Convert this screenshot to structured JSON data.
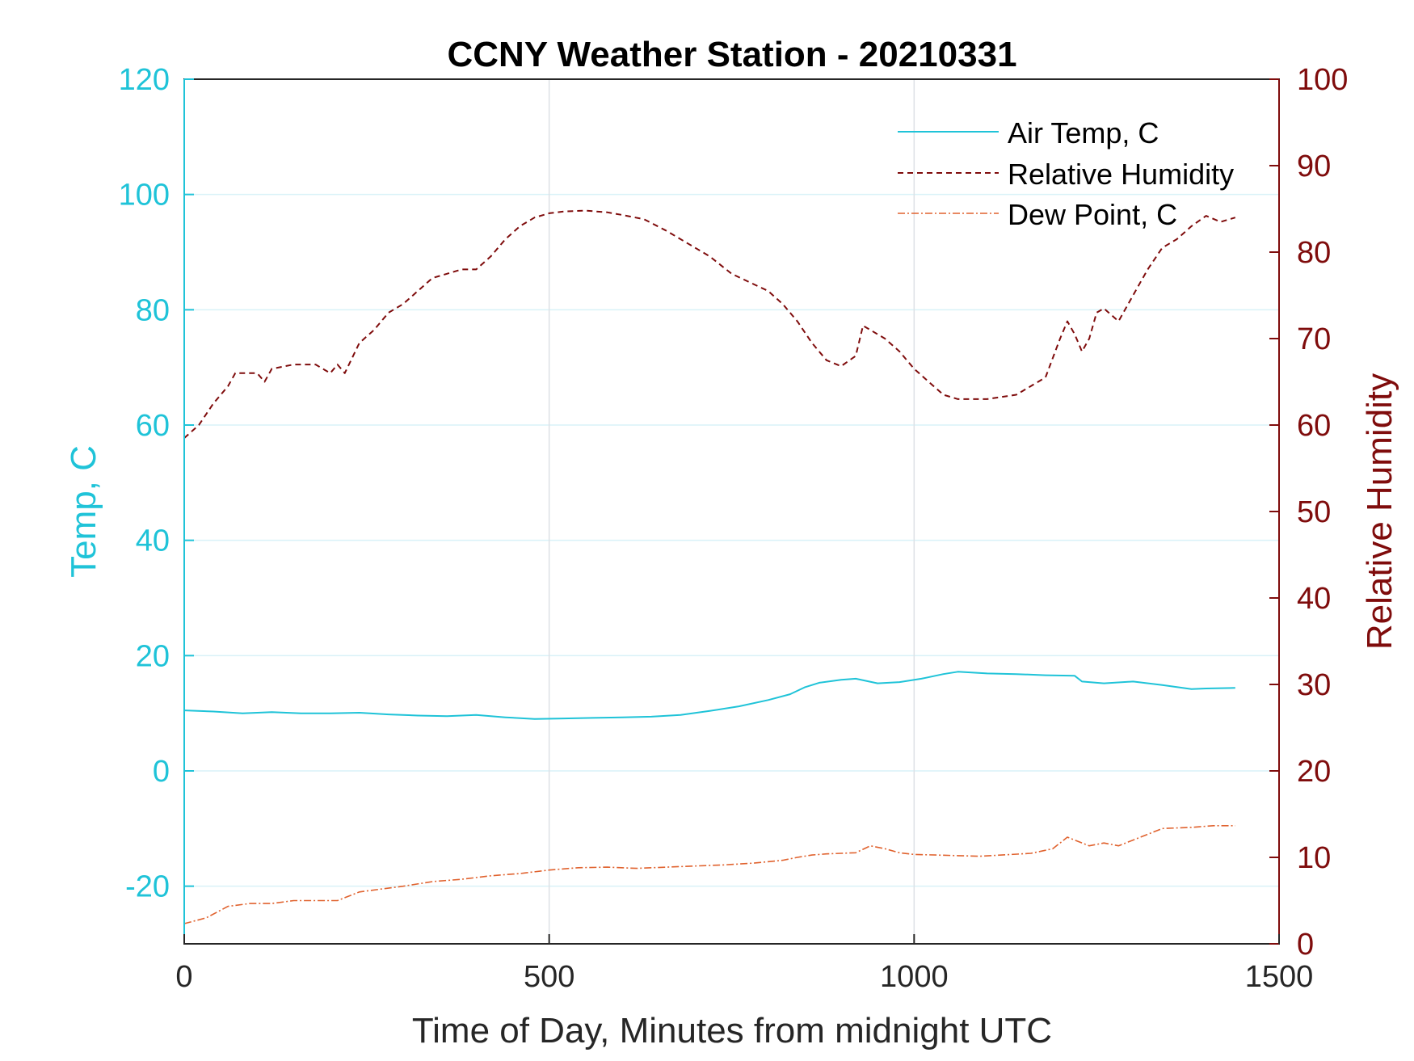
{
  "chart_data": {
    "type": "line",
    "title": "CCNY Weather Station - 20210331",
    "xlabel": "Time of Day, Minutes from midnight UTC",
    "ylabel_left": "Temp, C",
    "ylabel_right": "Relative Humidity",
    "xlim": [
      0,
      1500
    ],
    "ylim_left": [
      -30,
      120
    ],
    "ylim_right": [
      0,
      100
    ],
    "x_ticks": [
      "0",
      "500",
      "1000",
      "1500"
    ],
    "y_ticks_left": [
      "-20",
      "0",
      "20",
      "40",
      "60",
      "80",
      "100",
      "120"
    ],
    "y_ticks_right": [
      "0",
      "10",
      "20",
      "30",
      "40",
      "50",
      "60",
      "70",
      "80",
      "90",
      "100"
    ],
    "grid": true,
    "legend_position": "top-right",
    "colors": {
      "left_axis": "#1fc3d8",
      "right_axis": "#7f0c0c",
      "air_temp": "#1fc3d8",
      "humidity": "#7f0c0c",
      "dew_point": "#e0622e",
      "grid": "#d9f2f8",
      "frame": "#262626"
    },
    "series": [
      {
        "name": "Air Temp, C",
        "axis": "left",
        "style": "solid",
        "x": [
          0,
          40,
          80,
          120,
          160,
          200,
          240,
          280,
          320,
          360,
          400,
          440,
          480,
          520,
          560,
          600,
          640,
          680,
          720,
          760,
          800,
          830,
          850,
          870,
          900,
          920,
          950,
          980,
          1010,
          1040,
          1060,
          1100,
          1140,
          1180,
          1220,
          1230,
          1260,
          1300,
          1340,
          1380,
          1400,
          1440
        ],
        "values": [
          10.5,
          10.3,
          10.0,
          10.2,
          10.0,
          10.0,
          10.1,
          9.8,
          9.6,
          9.5,
          9.7,
          9.3,
          9.0,
          9.1,
          9.2,
          9.3,
          9.4,
          9.7,
          10.4,
          11.2,
          12.3,
          13.3,
          14.5,
          15.3,
          15.8,
          16.0,
          15.2,
          15.4,
          16.0,
          16.8,
          17.2,
          16.9,
          16.8,
          16.6,
          16.5,
          15.5,
          15.2,
          15.5,
          14.9,
          14.2,
          14.3,
          14.4
        ]
      },
      {
        "name": "Relative Humidity",
        "axis": "right",
        "style": "dashed",
        "x": [
          0,
          20,
          40,
          60,
          70,
          80,
          100,
          110,
          120,
          150,
          180,
          200,
          210,
          220,
          240,
          260,
          280,
          300,
          320,
          340,
          360,
          380,
          400,
          420,
          440,
          460,
          480,
          500,
          520,
          550,
          580,
          600,
          630,
          660,
          690,
          720,
          750,
          780,
          800,
          820,
          840,
          860,
          880,
          900,
          920,
          930,
          940,
          960,
          980,
          1000,
          1020,
          1040,
          1060,
          1080,
          1100,
          1140,
          1180,
          1200,
          1210,
          1220,
          1230,
          1240,
          1250,
          1260,
          1280,
          1300,
          1320,
          1340,
          1360,
          1380,
          1400,
          1420,
          1440
        ],
        "values": [
          58.5,
          60.0,
          62.5,
          64.5,
          66.0,
          66.0,
          66.0,
          65.0,
          66.5,
          67.0,
          67.0,
          66.0,
          67.0,
          66.0,
          69.5,
          71.0,
          73.0,
          74.0,
          75.5,
          77.0,
          77.5,
          78.0,
          78.0,
          79.5,
          81.5,
          83.0,
          84.0,
          84.5,
          84.7,
          84.8,
          84.6,
          84.3,
          83.8,
          82.5,
          81.0,
          79.5,
          77.5,
          76.3,
          75.5,
          74.0,
          72.0,
          69.5,
          67.5,
          66.8,
          68.0,
          71.5,
          71.0,
          70.0,
          68.5,
          66.5,
          65.0,
          63.5,
          63.0,
          63.0,
          63.0,
          63.5,
          65.5,
          70.0,
          72.0,
          70.5,
          68.5,
          70.0,
          73.0,
          73.5,
          72.0,
          75.0,
          78.0,
          80.5,
          81.5,
          83.0,
          84.2,
          83.5,
          84.0
        ]
      },
      {
        "name": "Dew Point, C",
        "axis": "left",
        "style": "dashdot",
        "x": [
          0,
          30,
          60,
          90,
          120,
          150,
          180,
          210,
          240,
          270,
          300,
          340,
          380,
          420,
          460,
          500,
          540,
          580,
          620,
          660,
          700,
          740,
          780,
          820,
          840,
          860,
          880,
          900,
          920,
          940,
          960,
          980,
          1000,
          1030,
          1060,
          1090,
          1120,
          1160,
          1190,
          1210,
          1220,
          1240,
          1260,
          1280,
          1300,
          1340,
          1380,
          1410,
          1440
        ],
        "values": [
          -26.5,
          -25.5,
          -23.5,
          -23.0,
          -23.0,
          -22.5,
          -22.5,
          -22.5,
          -21.0,
          -20.5,
          -20.0,
          -19.2,
          -18.8,
          -18.2,
          -17.8,
          -17.2,
          -16.8,
          -16.7,
          -16.9,
          -16.7,
          -16.5,
          -16.3,
          -16.0,
          -15.5,
          -15.0,
          -14.6,
          -14.4,
          -14.3,
          -14.2,
          -13.0,
          -13.5,
          -14.2,
          -14.5,
          -14.6,
          -14.7,
          -14.8,
          -14.6,
          -14.3,
          -13.5,
          -11.5,
          -12.0,
          -13.0,
          -12.5,
          -13.0,
          -12.0,
          -10.0,
          -9.8,
          -9.5,
          -9.5
        ]
      }
    ]
  }
}
